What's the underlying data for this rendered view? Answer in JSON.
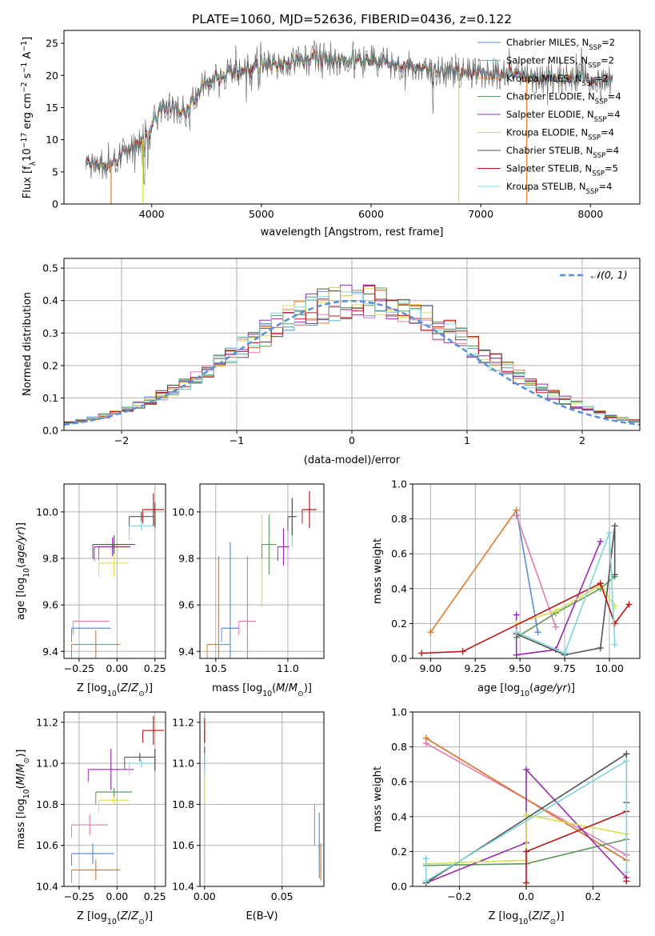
{
  "colors": {
    "chabrier_miles": "#5b8fd5",
    "salpeter_miles": "#e07bb0",
    "kroupa_miles": "#e07b2a",
    "chabrier_elodie": "#5a9a5a",
    "salpeter_elodie": "#9a2bb0",
    "kroupa_elodie": "#d8e050",
    "chabrier_stelib": "#555555",
    "salpeter_stelib": "#b81818",
    "kroupa_stelib": "#7fd5dc",
    "normal_curve": "#5b8fd5"
  },
  "chart_data": [
    {
      "id": "spectrum",
      "type": "line",
      "title": "PLATE=1060, MJD=52636, FIBERID=0436, z=0.122",
      "xlabel": "wavelength [Angstrom, rest frame]",
      "ylabel": "Flux [f_λ10^-17 erg cm^-2 s^-1 A^-1]",
      "xlim": [
        3200,
        8450
      ],
      "ylim": [
        0,
        27
      ],
      "xticks": [
        "4000",
        "5000",
        "6000",
        "7000",
        "8000"
      ],
      "yticks": [
        "0",
        "5",
        "10",
        "15",
        "20",
        "25"
      ],
      "grid": false,
      "legend_position": "top-right",
      "spectrum_shape": {
        "x": [
          3400,
          3600,
          3800,
          3950,
          4100,
          4300,
          4500,
          4700,
          4900,
          5200,
          5500,
          5800,
          6100,
          6400,
          6700,
          7000,
          7300,
          7600,
          7900,
          8200
        ],
        "y": [
          6.5,
          6.0,
          8.5,
          10.5,
          15.5,
          14.5,
          19.0,
          20.5,
          21.0,
          22.0,
          22.5,
          22.5,
          22.0,
          21.5,
          20.5,
          20.5,
          20.0,
          19.5,
          19.5,
          19.5
        ]
      },
      "series": [
        {
          "name": "Chabrier MILES, N_SSP=2",
          "label_main": "Chabrier MILES, N",
          "label_sub": "SSP",
          "label_end": "=2",
          "color_key": "chabrier_miles"
        },
        {
          "name": "Salpeter MILES, N_SSP=2",
          "label_main": "Salpeter MILES, N",
          "label_sub": "SSP",
          "label_end": "=2",
          "color_key": "salpeter_miles"
        },
        {
          "name": "Kroupa MILES, N_SSP=2",
          "label_main": "Kroupa MILES, N",
          "label_sub": "SSP",
          "label_end": "=2",
          "color_key": "kroupa_miles"
        },
        {
          "name": "Chabrier ELODIE, N_SSP=4",
          "label_main": "Chabrier ELODIE, N",
          "label_sub": "SSP",
          "label_end": "=4",
          "color_key": "chabrier_elodie"
        },
        {
          "name": "Salpeter ELODIE, N_SSP=4",
          "label_main": "Salpeter ELODIE, N",
          "label_sub": "SSP",
          "label_end": "=4",
          "color_key": "salpeter_elodie"
        },
        {
          "name": "Kroupa ELODIE, N_SSP=4",
          "label_main": "Kroupa ELODIE, N",
          "label_sub": "SSP",
          "label_end": "=4",
          "color_key": "kroupa_elodie"
        },
        {
          "name": "Chabrier STELIB, N_SSP=4",
          "label_main": "Chabrier STELIB, N",
          "label_sub": "SSP",
          "label_end": "=4",
          "color_key": "chabrier_stelib"
        },
        {
          "name": "Salpeter STELIB, N_SSP=5",
          "label_main": "Salpeter STELIB, N",
          "label_sub": "SSP",
          "label_end": "=5",
          "color_key": "salpeter_stelib"
        },
        {
          "name": "Kroupa STELIB, N_SSP=4",
          "label_main": "Kroupa STELIB, N",
          "label_sub": "SSP",
          "label_end": "=4",
          "color_key": "kroupa_stelib"
        }
      ]
    },
    {
      "id": "residuals",
      "type": "line",
      "xlabel": "(data-model)/error",
      "ylabel": "Normed distribution",
      "xlim": [
        -2.5,
        2.5
      ],
      "ylim": [
        0,
        0.53
      ],
      "xticks": [
        "−2",
        "−1",
        "0",
        "1",
        "2"
      ],
      "yticks": [
        "0.0",
        "0.1",
        "0.2",
        "0.3",
        "0.4",
        "0.5"
      ],
      "grid": true,
      "legend_position": "top-right",
      "legend_label": "𝒩(0, 1)",
      "bin_width": 0.1,
      "bin_start": -2.5,
      "histogram_counts": 50,
      "normal": {
        "mean": 0,
        "sigma": 1
      }
    },
    {
      "id": "age_vs_Z",
      "type": "scatter",
      "xlabel": "Z [log10(Z/Z⊙)]",
      "ylabel": "age [log10(age/yr)]",
      "xlim": [
        -0.35,
        0.32
      ],
      "ylim": [
        9.37,
        10.12
      ],
      "xticks": [
        "−0.25",
        "0.00",
        "0.25"
      ],
      "yticks": [
        "9.4",
        "9.6",
        "9.8",
        "10.0"
      ],
      "grid": true,
      "points": [
        {
          "color_key": "chabrier_miles",
          "x": -0.17,
          "y": 9.5,
          "xerr": 0.13,
          "yerr": 0.0
        },
        {
          "color_key": "salpeter_miles",
          "x": -0.17,
          "y": 9.53,
          "xerr": 0.12,
          "yerr": 0.0
        },
        {
          "color_key": "kroupa_miles",
          "x": -0.14,
          "y": 9.43,
          "xerr": 0.16,
          "yerr": 0.06
        },
        {
          "color_key": "chabrier_elodie",
          "x": -0.02,
          "y": 9.85,
          "xerr": 0.1,
          "yerr": 0.02
        },
        {
          "color_key": "salpeter_elodie",
          "x": -0.03,
          "y": 9.85,
          "xerr": 0.12,
          "yerr": 0.04
        },
        {
          "color_key": "kroupa_elodie",
          "x": -0.02,
          "y": 9.78,
          "xerr": 0.1,
          "yerr": 0.06
        },
        {
          "color_key": "chabrier_stelib",
          "x": -0.02,
          "y": 9.86,
          "xerr": 0.14,
          "yerr": 0.04
        },
        {
          "color_key": "chabrier_stelib",
          "x": 0.16,
          "y": 9.98,
          "xerr": 0.08,
          "yerr": 0.02
        },
        {
          "color_key": "kroupa_stelib",
          "x": 0.16,
          "y": 9.94,
          "xerr": 0.08,
          "yerr": 0.02
        },
        {
          "color_key": "salpeter_stelib",
          "x": 0.24,
          "y": 10.01,
          "xerr": 0.07,
          "yerr": 0.07
        },
        {
          "color_key": "chabrier_stelib",
          "x": 0.25,
          "y": 9.99,
          "xerr": 0.0,
          "yerr": 0.05
        }
      ]
    },
    {
      "id": "age_vs_mass",
      "type": "scatter",
      "xlabel": "mass [log10(M/M⊙)]",
      "ylabel": "",
      "xlim": [
        10.39,
        11.25
      ],
      "ylim": [
        9.37,
        10.12
      ],
      "xticks": [
        "10.5",
        "11.0"
      ],
      "yticks": [
        "9.4",
        "9.6",
        "9.8",
        "10.0"
      ],
      "grid": true,
      "points": [
        {
          "color_key": "kroupa_miles",
          "x": 10.52,
          "y": 9.43,
          "xerr": 0.08,
          "yerr": 0.38
        },
        {
          "color_key": "chabrier_miles",
          "x": 10.6,
          "y": 9.5,
          "xerr": 0.06,
          "yerr": 0.37
        },
        {
          "color_key": "salpeter_miles",
          "x": 10.72,
          "y": 9.53,
          "xerr": 0.06,
          "yerr": 0.28
        },
        {
          "color_key": "kroupa_elodie",
          "x": 10.82,
          "y": 9.79,
          "xerr": 0.0,
          "yerr": 0.2
        },
        {
          "color_key": "chabrier_elodie",
          "x": 10.87,
          "y": 9.86,
          "xerr": 0.05,
          "yerr": 0.13
        },
        {
          "color_key": "salpeter_elodie",
          "x": 10.97,
          "y": 9.85,
          "xerr": 0.04,
          "yerr": 0.08
        },
        {
          "color_key": "kroupa_stelib",
          "x": 11.03,
          "y": 9.95,
          "xerr": 0.0,
          "yerr": 0.1
        },
        {
          "color_key": "chabrier_stelib",
          "x": 11.03,
          "y": 9.98,
          "xerr": 0.03,
          "yerr": 0.08
        },
        {
          "color_key": "salpeter_stelib",
          "x": 11.15,
          "y": 10.01,
          "xerr": 0.05,
          "yerr": 0.08
        }
      ]
    },
    {
      "id": "weight_vs_age",
      "type": "line",
      "xlabel": "age [log10(age/yr)]",
      "ylabel": "mass weight",
      "xlim": [
        8.9,
        10.17
      ],
      "ylim": [
        0,
        1.0
      ],
      "xticks": [
        "9.00",
        "9.25",
        "9.50",
        "9.75",
        "10.00"
      ],
      "yticks": [
        "0.0",
        "0.2",
        "0.4",
        "0.6",
        "0.8",
        "1.0"
      ],
      "grid": true,
      "series": [
        {
          "color_key": "chabrier_miles",
          "x": [
            9.48,
            9.6
          ],
          "y": [
            0.85,
            0.15
          ]
        },
        {
          "color_key": "salpeter_miles",
          "x": [
            9.48,
            9.7
          ],
          "y": [
            0.82,
            0.18
          ]
        },
        {
          "color_key": "kroupa_miles",
          "x": [
            9.0,
            9.48
          ],
          "y": [
            0.15,
            0.85
          ]
        },
        {
          "color_key": "chabrier_elodie",
          "x": [
            9.48,
            9.7,
            9.95,
            10.03
          ],
          "y": [
            0.12,
            0.26,
            0.4,
            0.47
          ]
        },
        {
          "color_key": "salpeter_elodie",
          "x": [
            9.48,
            9.48,
            9.7,
            9.95
          ],
          "y": [
            0.25,
            0.02,
            0.05,
            0.67
          ]
        },
        {
          "color_key": "kroupa_elodie",
          "x": [
            9.48,
            9.7,
            9.95,
            10.03
          ],
          "y": [
            0.2,
            0.27,
            0.42,
            0.3
          ]
        },
        {
          "color_key": "chabrier_stelib",
          "x": [
            9.48,
            9.75,
            9.95,
            10.03,
            10.03
          ],
          "y": [
            0.14,
            0.02,
            0.06,
            0.76,
            0.48
          ]
        },
        {
          "color_key": "salpeter_stelib",
          "x": [
            8.95,
            9.18,
            9.95,
            10.03,
            10.11
          ],
          "y": [
            0.03,
            0.04,
            0.43,
            0.2,
            0.31
          ]
        },
        {
          "color_key": "kroupa_stelib",
          "x": [
            9.48,
            9.75,
            10.0,
            10.03
          ],
          "y": [
            0.15,
            0.03,
            0.72,
            0.08
          ]
        }
      ]
    },
    {
      "id": "mass_vs_Z",
      "type": "scatter",
      "xlabel": "Z [log10(Z/Z⊙)]",
      "ylabel": "mass [log10(M/M⊙)]",
      "xlim": [
        -0.35,
        0.32
      ],
      "ylim": [
        10.4,
        11.25
      ],
      "xticks": [
        "−0.25",
        "0.00",
        "0.25"
      ],
      "yticks": [
        "10.4",
        "10.6",
        "10.8",
        "11.0",
        "11.2"
      ],
      "grid": true,
      "points": [
        {
          "color_key": "kroupa_miles",
          "x": -0.14,
          "y": 10.48,
          "xerr": 0.16,
          "yerr": 0.05
        },
        {
          "color_key": "chabrier_miles",
          "x": -0.16,
          "y": 10.56,
          "xerr": 0.14,
          "yerr": 0.05
        },
        {
          "color_key": "salpeter_miles",
          "x": -0.18,
          "y": 10.7,
          "xerr": 0.12,
          "yerr": 0.05
        },
        {
          "color_key": "kroupa_elodie",
          "x": -0.02,
          "y": 10.82,
          "xerr": 0.1,
          "yerr": 0.02
        },
        {
          "color_key": "chabrier_elodie",
          "x": -0.02,
          "y": 10.86,
          "xerr": 0.12,
          "yerr": 0.02
        },
        {
          "color_key": "salpeter_elodie",
          "x": -0.04,
          "y": 10.97,
          "xerr": 0.15,
          "yerr": 0.1
        },
        {
          "color_key": "kroupa_stelib",
          "x": 0.16,
          "y": 11.0,
          "xerr": 0.08,
          "yerr": 0.02
        },
        {
          "color_key": "chabrier_stelib",
          "x": 0.15,
          "y": 11.03,
          "xerr": 0.1,
          "yerr": 0.02
        },
        {
          "color_key": "salpeter_stelib",
          "x": 0.24,
          "y": 11.16,
          "xerr": 0.07,
          "yerr": 0.07
        },
        {
          "color_key": "chabrier_stelib",
          "x": 0.25,
          "y": 11.02,
          "xerr": 0.0,
          "yerr": 0.05
        }
      ]
    },
    {
      "id": "mass_vs_ebv",
      "type": "scatter",
      "xlabel": "E(B-V)",
      "ylabel": "",
      "xlim": [
        -0.003,
        0.077
      ],
      "ylim": [
        10.4,
        11.25
      ],
      "xticks": [
        "0.00",
        "0.05"
      ],
      "yticks": [
        "10.4",
        "10.6",
        "10.8",
        "11.0",
        "11.2"
      ],
      "grid": true,
      "points": [
        {
          "color_key": "chabrier_stelib",
          "x": 0.0,
          "y": 11.03,
          "xerr": 0.0,
          "yerr": 0.05
        },
        {
          "color_key": "salpeter_stelib",
          "x": 0.0,
          "y": 11.16,
          "xerr": 0.0,
          "yerr": 0.06
        },
        {
          "color_key": "kroupa_stelib",
          "x": 0.0,
          "y": 11.0,
          "xerr": 0.0,
          "yerr": 0.05
        },
        {
          "color_key": "kroupa_elodie",
          "x": 0.0,
          "y": 10.87,
          "xerr": 0.0,
          "yerr": 0.07
        },
        {
          "color_key": "salpeter_miles",
          "x": 0.071,
          "y": 10.7,
          "xerr": 0.0,
          "yerr": 0.1
        },
        {
          "color_key": "chabrier_miles",
          "x": 0.074,
          "y": 10.6,
          "xerr": 0.0,
          "yerr": 0.16
        },
        {
          "color_key": "kroupa_miles",
          "x": 0.075,
          "y": 10.52,
          "xerr": 0.0,
          "yerr": 0.09
        }
      ]
    },
    {
      "id": "weight_vs_Z",
      "type": "line",
      "xlabel": "Z [log10(Z/Z⊙)]",
      "ylabel": "mass weight",
      "xlim": [
        -0.34,
        0.34
      ],
      "ylim": [
        0,
        1.0
      ],
      "xticks": [
        "−0.2",
        "0.0",
        "0.2"
      ],
      "yticks": [
        "0.0",
        "0.2",
        "0.4",
        "0.6",
        "0.8",
        "1.0"
      ],
      "grid": true,
      "series": [
        {
          "color_key": "chabrier_miles",
          "x": [
            -0.3,
            0.3
          ],
          "y": [
            0.85,
            0.15
          ]
        },
        {
          "color_key": "salpeter_miles",
          "x": [
            -0.3,
            0.3
          ],
          "y": [
            0.82,
            0.18
          ]
        },
        {
          "color_key": "kroupa_miles",
          "x": [
            -0.3,
            0.3
          ],
          "y": [
            0.85,
            0.15
          ]
        },
        {
          "color_key": "chabrier_elodie",
          "x": [
            -0.3,
            0.0,
            0.3
          ],
          "y": [
            0.12,
            0.13,
            0.27
          ]
        },
        {
          "color_key": "salpeter_elodie",
          "x": [
            -0.3,
            0.0,
            0.0,
            0.3
          ],
          "y": [
            0.02,
            0.25,
            0.67,
            0.05
          ]
        },
        {
          "color_key": "kroupa_elodie",
          "x": [
            -0.3,
            0.0,
            0.0,
            0.3
          ],
          "y": [
            0.13,
            0.15,
            0.41,
            0.3
          ]
        },
        {
          "color_key": "chabrier_stelib",
          "x": [
            -0.3,
            0.3,
            0.3
          ],
          "y": [
            0.02,
            0.76,
            0.48
          ]
        },
        {
          "color_key": "salpeter_stelib",
          "x": [
            0.0,
            0.0,
            0.3,
            0.3
          ],
          "y": [
            0.02,
            0.2,
            0.43,
            0.03
          ]
        },
        {
          "color_key": "kroupa_stelib",
          "x": [
            -0.3,
            -0.3,
            0.3,
            0.3
          ],
          "y": [
            0.16,
            0.03,
            0.72,
            0.08
          ]
        }
      ]
    }
  ]
}
